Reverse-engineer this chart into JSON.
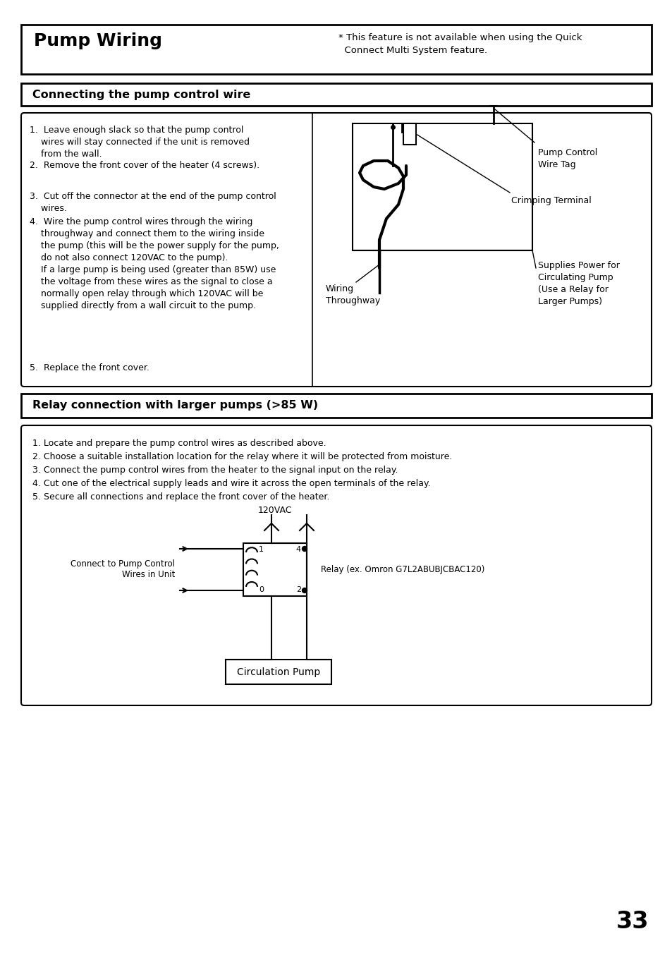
{
  "page_bg": "#ffffff",
  "title": "Pump Wiring",
  "title_note": "* This feature is not available when using the Quick\n  Connect Multi System feature.",
  "section1_header": "Connecting the pump control wire",
  "section1_items": [
    "1.  Leave enough slack so that the pump control\n    wires will stay connected if the unit is removed\n    from the wall.",
    "2.  Remove the front cover of the heater (4 screws).",
    "3.  Cut off the connector at the end of the pump control\n    wires.",
    "4.  Wire the pump control wires through the wiring\n    throughway and connect them to the wiring inside\n    the pump (this will be the power supply for the pump,\n    do not also connect 120VAC to the pump).\n    If a large pump is being used (greater than 85W) use\n    the voltage from these wires as the signal to close a\n    normally open relay through which 120VAC will be\n    supplied directly from a wall circuit to the pump.",
    "5.  Replace the front cover."
  ],
  "diag1": {
    "pump_control_wire_tag": "Pump Control\nWire Tag",
    "crimping_terminal": "Crimping Terminal",
    "wiring_throughway": "Wiring\nThroughway",
    "supplies_power": "Supplies Power for\nCirculating Pump\n(Use a Relay for\nLarger Pumps)"
  },
  "section2_header": "Relay connection with larger pumps (>85 W)",
  "section2_items": [
    "1. Locate and prepare the pump control wires as described above.",
    "2. Choose a suitable installation location for the relay where it will be protected from moisture.",
    "3. Connect the pump control wires from the heater to the signal input on the relay.",
    "4. Cut one of the electrical supply leads and wire it across the open terminals of the relay.",
    "5. Secure all connections and replace the front cover of the heater."
  ],
  "diag2": {
    "volts": "120VAC",
    "connect_pump": "Connect to Pump Control\nWires in Unit",
    "relay_label": "Relay (ex. Omron G7L2ABUBJCBAC120)",
    "circulation_pump": "Circulation Pump"
  },
  "page_number": "33"
}
